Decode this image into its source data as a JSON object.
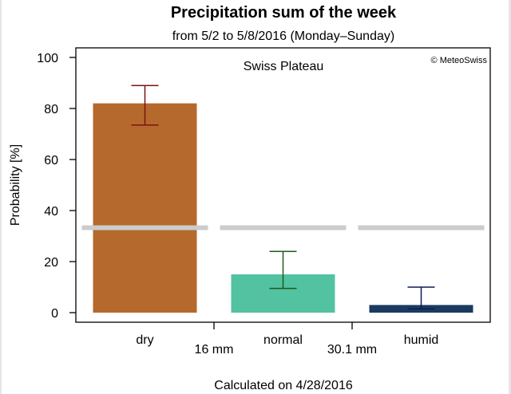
{
  "chart_data": {
    "type": "bar",
    "title": "Precipitation sum of the week",
    "subtitle": "from 5/2 to 5/8/2016 (Monday–Sunday)",
    "region": "Swiss Plateau",
    "credit": "© MeteoSwiss",
    "ylabel": "Probability [%]",
    "ylim": [
      0,
      100
    ],
    "yticks": [
      "0",
      "20",
      "40",
      "60",
      "80",
      "100"
    ],
    "categories": [
      "dry",
      "normal",
      "humid"
    ],
    "values": [
      82,
      15,
      3
    ],
    "error_low": [
      73.5,
      9.5,
      1.5
    ],
    "error_high": [
      89,
      24,
      10
    ],
    "bar_colors": [
      "#b5692c",
      "#52c2a0",
      "#1b3a5f"
    ],
    "error_colors": [
      "#7a1414",
      "#1f5a1a",
      "#0d1a55"
    ],
    "climatology_line": 33.3,
    "climatology_color": "#cccccc",
    "thresholds": [
      "16 mm",
      "30.1 mm"
    ],
    "footer": "Calculated on 4/28/2016"
  }
}
